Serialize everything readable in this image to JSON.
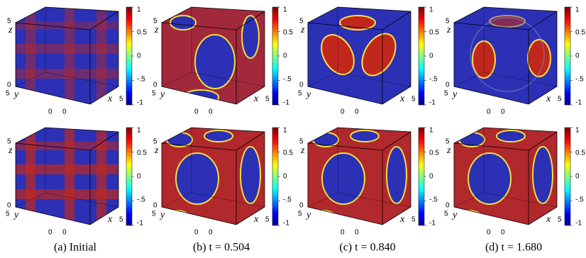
{
  "figure": {
    "colorbar_ticks": [
      "1",
      "0.5",
      "0",
      "-.5",
      "-1"
    ],
    "axis_labels": {
      "z": "z",
      "y": "y",
      "x": "x",
      "z_max": "5",
      "z_min": "0",
      "y_max": "5",
      "y_min": "0",
      "x_min": "0",
      "x_max": "5"
    },
    "captions": [
      "(a) Initial",
      "(b) t = 0.504",
      "(c) t = 0.840",
      "(d) t = 1.680"
    ]
  }
}
